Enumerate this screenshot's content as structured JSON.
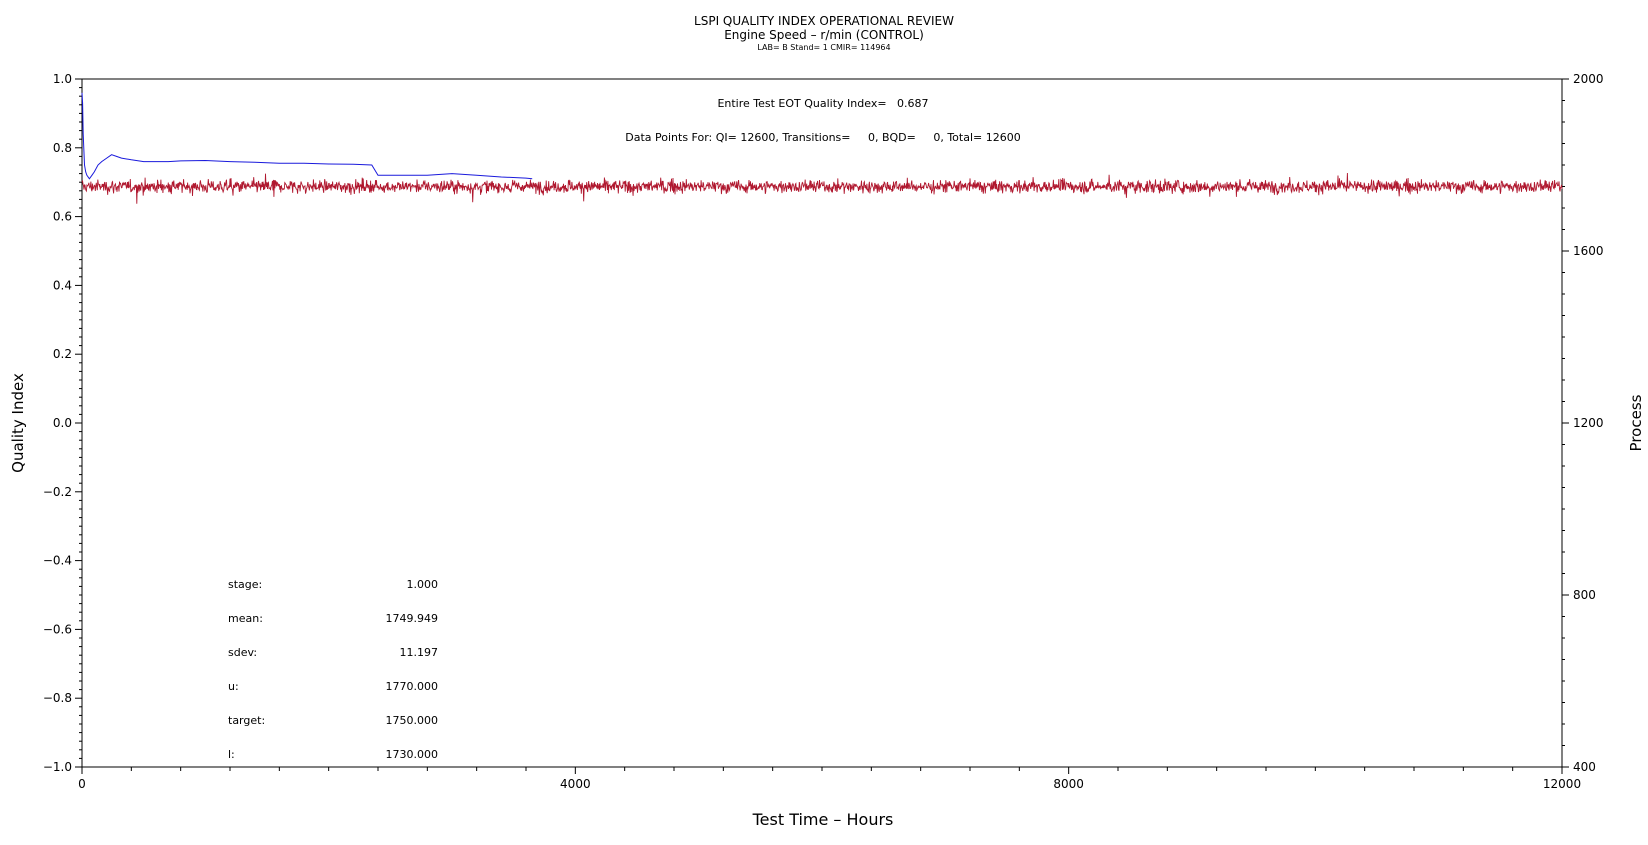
{
  "chart_data": {
    "type": "line",
    "title": "LSPI QUALITY INDEX OPERATIONAL REVIEW",
    "subtitle": "Engine Speed – r/min (CONTROL)",
    "subtitle2": "LAB= B Stand= 1 CMIR= 114964",
    "xlabel": "Test Time – Hours",
    "ylabel": "Quality Index",
    "ylabel_right": "Process",
    "xlim": [
      0,
      12000
    ],
    "ylim": [
      -1.0,
      1.0
    ],
    "ylim_right": [
      400,
      2000
    ],
    "x_ticks": [
      "0",
      "4000",
      "8000",
      "12000"
    ],
    "y_ticks": [
      "1.0",
      "0.8",
      "0.6",
      "0.4",
      "0.2",
      "0.0",
      "-0.2",
      "-0.4",
      "-0.6",
      "-0.8",
      "-1.0"
    ],
    "y_ticks_right": [
      "2000",
      "1600",
      "1200",
      "800",
      "400"
    ],
    "grid": false,
    "annotation_qi": "Entire Test EOT Quality Index=   0.687",
    "annotation_points": "Data Points For: QI= 12600, Transitions=     0, BQD=     0, Total= 12600",
    "stats": [
      {
        "label": "stage:",
        "value": "1.000"
      },
      {
        "label": "mean:",
        "value": "1749.949"
      },
      {
        "label": "sdev:",
        "value": "11.197"
      },
      {
        "label": "u:",
        "value": "1770.000"
      },
      {
        "label": "target:",
        "value": "1750.000"
      },
      {
        "label": "l:",
        "value": "1730.000"
      }
    ],
    "series": [
      {
        "axis": "left",
        "color": "#1a1adc",
        "x": [
          0,
          5,
          10,
          20,
          30,
          40,
          60,
          80,
          100,
          130,
          160,
          200,
          240,
          280,
          320,
          400,
          500,
          600,
          700,
          800,
          1000,
          1200,
          1400,
          1600,
          1800,
          2000,
          2200,
          2350,
          2400,
          2600,
          2800,
          3000,
          3200,
          3400,
          3600,
          3650
        ],
        "y": [
          0.96,
          0.93,
          0.84,
          0.75,
          0.73,
          0.72,
          0.71,
          0.72,
          0.73,
          0.75,
          0.76,
          0.77,
          0.78,
          0.775,
          0.77,
          0.765,
          0.76,
          0.76,
          0.76,
          0.762,
          0.763,
          0.76,
          0.758,
          0.755,
          0.755,
          0.753,
          0.752,
          0.75,
          0.72,
          0.72,
          0.72,
          0.725,
          0.72,
          0.715,
          0.712,
          0.71
        ]
      },
      {
        "axis": "right",
        "color": "#b0182f",
        "x_range": [
          0,
          12000
        ],
        "target": 1750.0,
        "mean": 1749.949,
        "sdev": 11.197,
        "n_points": 12600
      }
    ]
  }
}
